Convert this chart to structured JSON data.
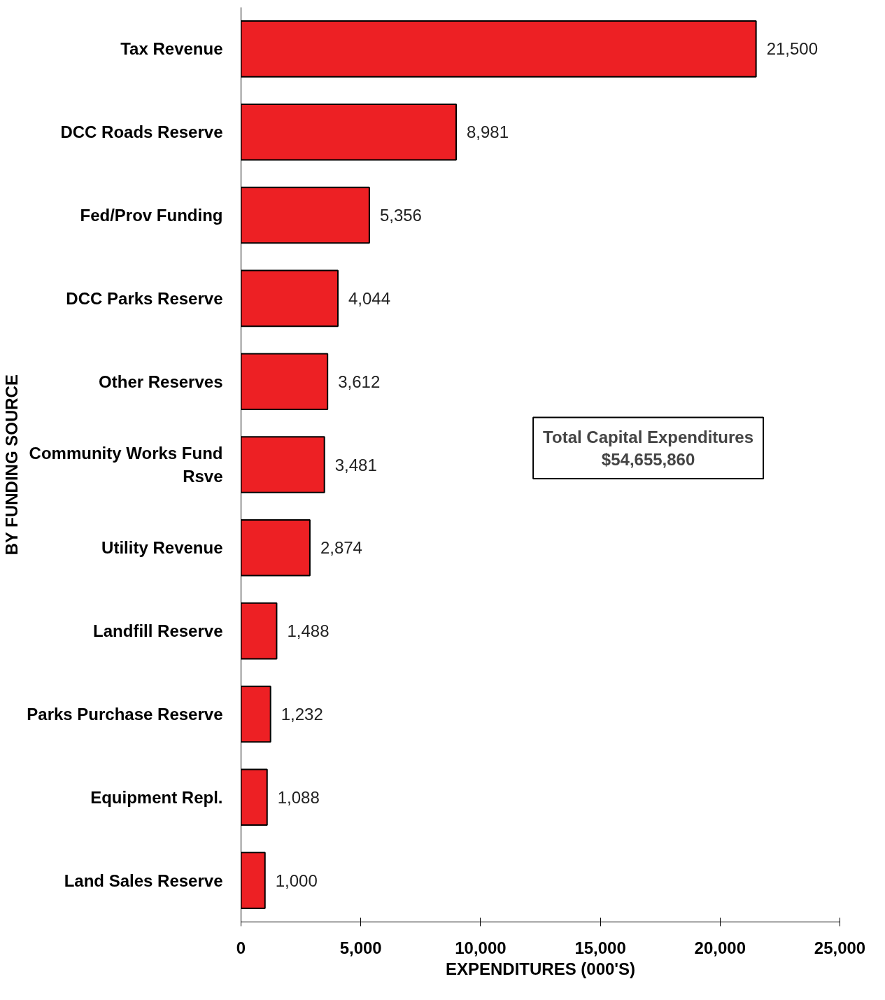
{
  "chart_data": {
    "type": "bar",
    "orientation": "horizontal",
    "xlabel": "EXPENDITURES (000'S)",
    "ylabel": "BY FUNDING SOURCE",
    "categories": [
      "Tax Revenue",
      "DCC Roads Reserve",
      "Fed/Prov Funding",
      "DCC Parks Reserve",
      "Other Reserves",
      "Community Works Fund Rsve",
      "Utility Revenue",
      "Landfill Reserve",
      "Parks Purchase Reserve",
      "Equipment Repl.",
      "Land Sales Reserve"
    ],
    "values": [
      21500,
      8981,
      5356,
      4044,
      3612,
      3481,
      2874,
      1488,
      1232,
      1088,
      1000
    ],
    "value_labels": [
      "21,500",
      "8,981",
      "5,356",
      "4,044",
      "3,612",
      "3,481",
      "2,874",
      "1,488",
      "1,232",
      "1,088",
      "1,000"
    ],
    "color": "#ed2024",
    "xlim": [
      0,
      25000
    ],
    "xticks": [
      {
        "value": 0,
        "label": "0"
      },
      {
        "value": 5000,
        "label": "5,000"
      },
      {
        "value": 10000,
        "label": "10,000"
      },
      {
        "value": 15000,
        "label": "15,000"
      },
      {
        "value": 20000,
        "label": "20,000"
      },
      {
        "value": 25000,
        "label": "25,000"
      }
    ],
    "grid": false,
    "annotations": [
      "Total Capital Expenditures\n$54,655,860"
    ]
  }
}
